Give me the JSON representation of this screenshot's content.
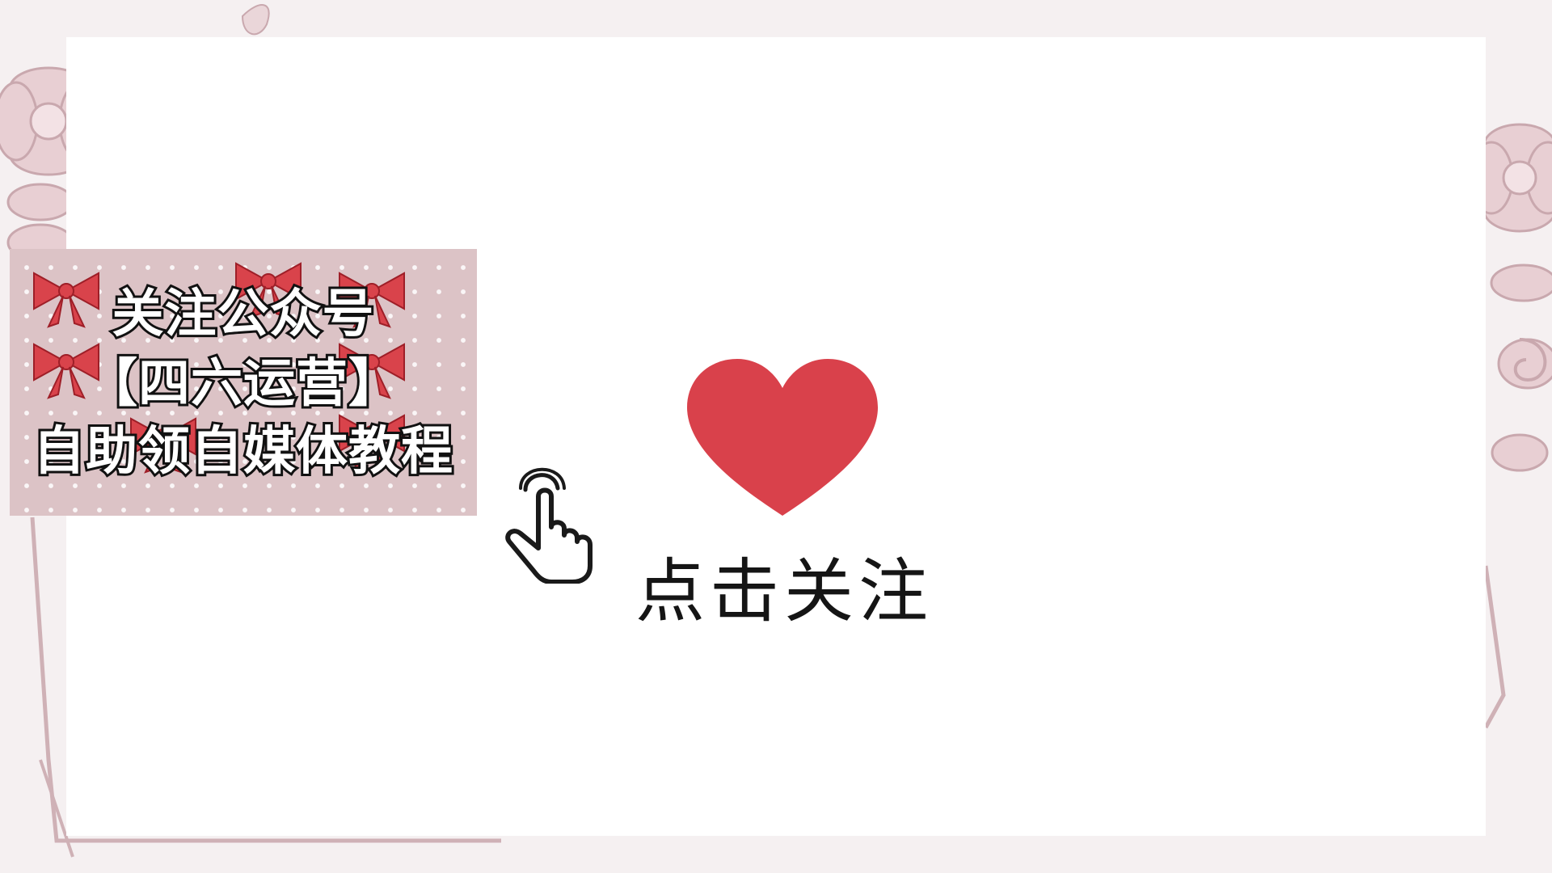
{
  "banner": {
    "line1": "关注公众号",
    "line2": "【四六运营】",
    "line3": "自助领自媒体教程"
  },
  "follow": {
    "label": "点击关注"
  },
  "icons": {
    "heart": "heart-icon",
    "hand": "pointing-hand-icon"
  },
  "colors": {
    "heart": "#d9414b",
    "banner_bg": "#dcc3c6",
    "bow": "#d9434b",
    "text_stroke": "#111111",
    "text_fill": "#ffffff"
  }
}
